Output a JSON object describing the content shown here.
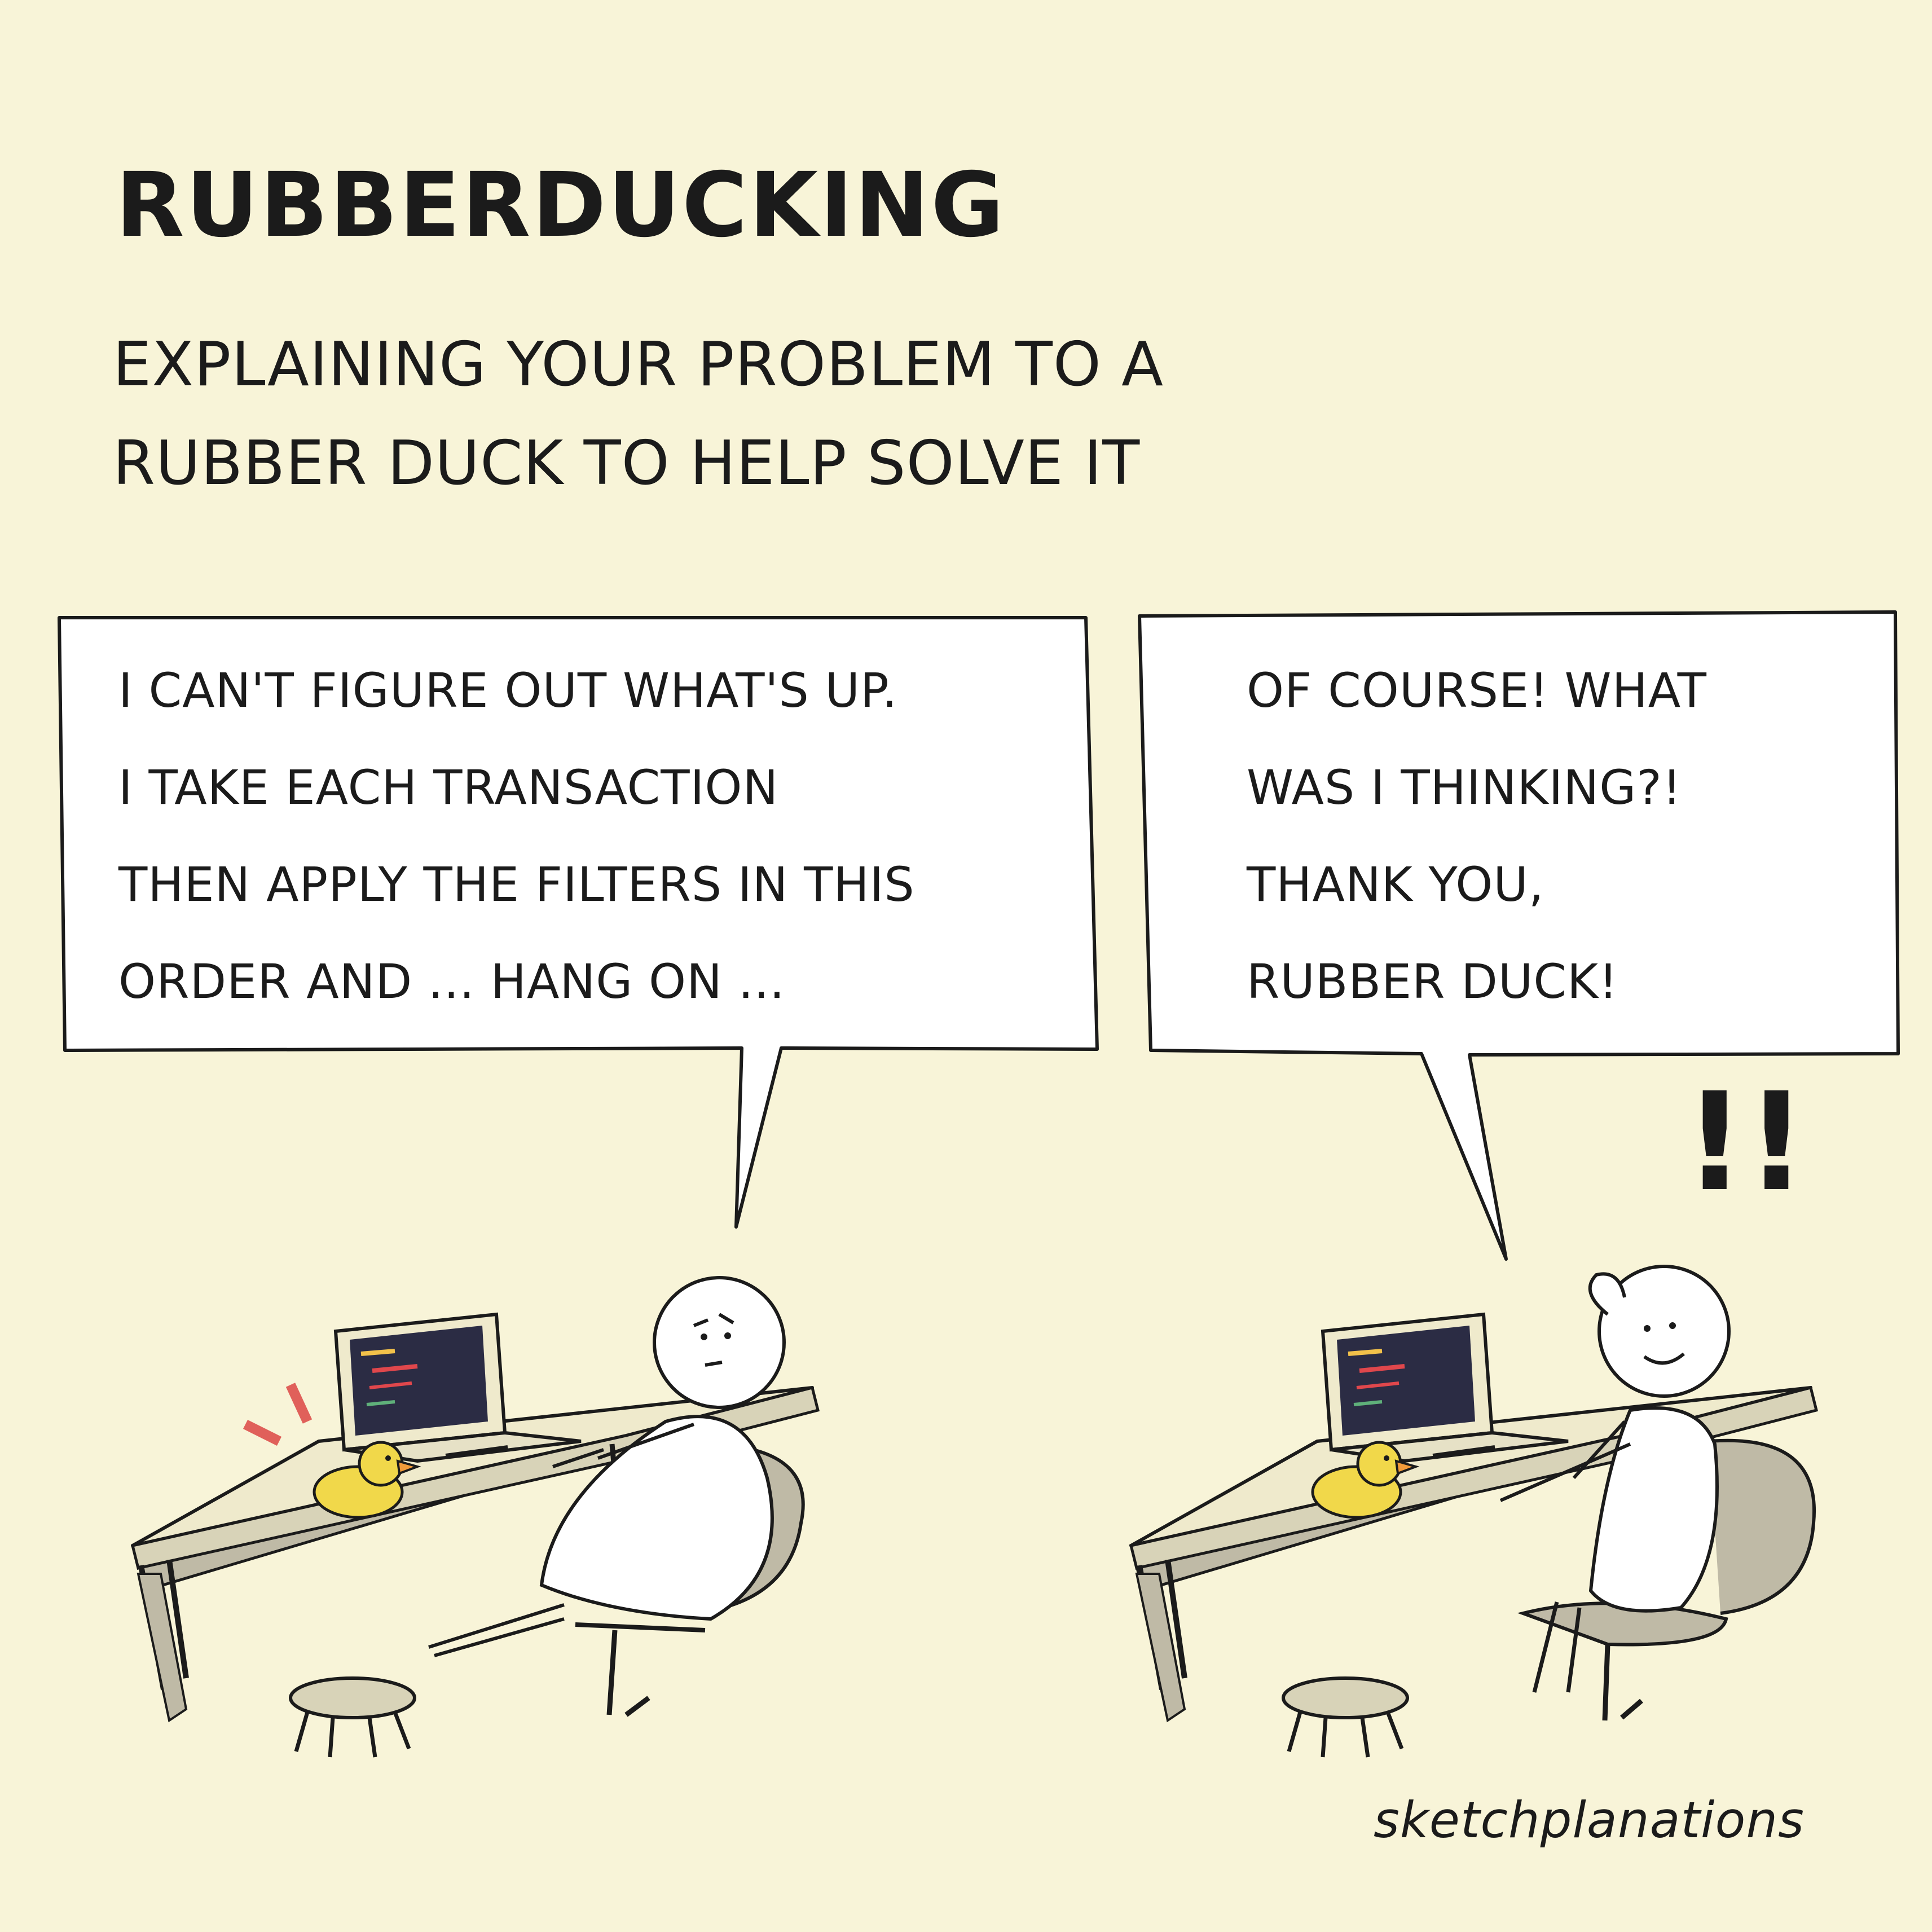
{
  "title": "RUBBERDUCKING",
  "subtitle": {
    "line1": "EXPLAINING YOUR PROBLEM TO A",
    "line2": "RUBBER DUCK TO HELP SOLVE IT"
  },
  "speech_left": {
    "lines": [
      "I CAN'T FIGURE OUT WHAT'S UP.",
      "I TAKE EACH TRANSACTION",
      "THEN APPLY THE FILTERS IN THIS",
      "ORDER AND ... HANG ON ..."
    ]
  },
  "speech_right": {
    "lines": [
      "OF COURSE! WHAT",
      "WAS I THINKING?!",
      "THANK YOU,",
      "RUBBER DUCK!"
    ]
  },
  "exclamation": "!!",
  "signature": "sketchplanations",
  "icons": {
    "left_scene": "person-with-laptop-and-duck-icon",
    "right_scene": "person-with-laptop-and-duck-icon"
  },
  "colors": {
    "background": "#f8f4d8",
    "ink": "#1b1b1b",
    "duck": "#f1d84a",
    "beak": "#f29b3a",
    "shadow": "#bfbaa6",
    "screen": "#2b2c44"
  }
}
